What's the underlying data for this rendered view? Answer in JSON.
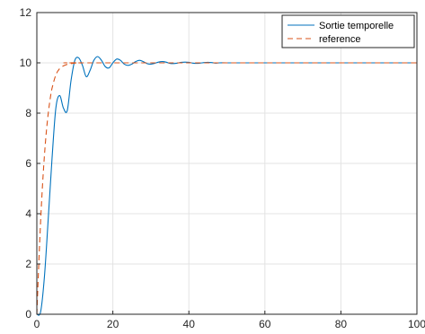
{
  "chart_data": {
    "type": "line",
    "title": "",
    "xlabel": "",
    "ylabel": "",
    "xlim": [
      0,
      100
    ],
    "ylim": [
      0,
      12
    ],
    "xticks": [
      0,
      20,
      40,
      60,
      80,
      100
    ],
    "yticks": [
      0,
      2,
      4,
      6,
      8,
      10,
      12
    ],
    "grid": true,
    "legend_position": "top-right",
    "series": [
      {
        "name": "Sortie temporelle",
        "color": "#0072BD",
        "line_style": "solid",
        "x": [
          0,
          1,
          2,
          3,
          4,
          5,
          6,
          7,
          8,
          9,
          10,
          11,
          12,
          13,
          14,
          15,
          16,
          17,
          18,
          19,
          20,
          21,
          22,
          23,
          24,
          25,
          26,
          27,
          28,
          29,
          30,
          31,
          32,
          33,
          34,
          35,
          36,
          37,
          38,
          39,
          40,
          41,
          42,
          43,
          44,
          45,
          46,
          47,
          48,
          50,
          55,
          60,
          70,
          80,
          90,
          100
        ],
        "y": [
          0,
          0.1,
          1.5,
          3.8,
          6.2,
          8.2,
          8.7,
          8.2,
          8.1,
          9.3,
          10.1,
          10.2,
          9.9,
          9.45,
          9.7,
          10.1,
          10.25,
          10.1,
          9.85,
          9.8,
          10.0,
          10.15,
          10.1,
          9.95,
          9.9,
          9.95,
          10.05,
          10.1,
          10.05,
          9.97,
          9.95,
          9.98,
          10.03,
          10.05,
          10.03,
          9.98,
          9.97,
          9.99,
          10.02,
          10.03,
          10.02,
          9.99,
          9.98,
          9.99,
          10.01,
          10.02,
          10.01,
          9.99,
          10.0,
          10.0,
          10.0,
          10.0,
          10.0,
          10.0,
          10.0,
          10.0
        ]
      },
      {
        "name": "reference",
        "color": "#D95319",
        "line_style": "dashed",
        "x": [
          0,
          0.5,
          1,
          1.5,
          2,
          2.5,
          3,
          3.5,
          4,
          5,
          6,
          7,
          8,
          9,
          10,
          12,
          14,
          100
        ],
        "y": [
          0,
          1.97,
          3.72,
          5.15,
          6.32,
          7.26,
          7.99,
          8.56,
          8.99,
          9.52,
          9.77,
          9.88,
          9.94,
          9.97,
          9.99,
          10.0,
          10.0,
          10.0
        ]
      }
    ]
  }
}
